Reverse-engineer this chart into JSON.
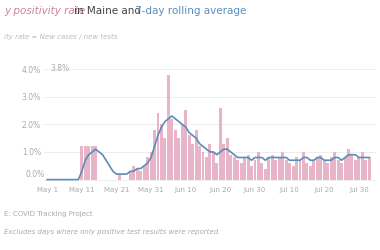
{
  "title_part1": "y positivity rate ",
  "title_part2": "in Maine and ",
  "title_part3": "7-day rolling average",
  "subtitle": "ity rate = New cases / new tests",
  "bar_color": "#e8b4c8",
  "line_color": "#5b8db8",
  "title_color1": "#c8849c",
  "title_color2": "#444444",
  "title_color3": "#5b8db8",
  "bg_color": "#ffffff",
  "axis_label_color": "#aaaaaa",
  "grid_color": "#e8e8e8",
  "source_text": "E: COVID Tracking Project",
  "footnote_text": "Excludes days where only positive test results were reported.",
  "ytick_labels": [
    " .0%",
    " .0%",
    " .0%",
    " .0%",
    " .0%"
  ],
  "ytick_values": [
    0.0,
    1.0,
    2.0,
    3.0,
    4.0
  ],
  "ymax": 4.1,
  "ymin": -0.15,
  "x_tick_labels": [
    "May 1",
    "May 11",
    "May 21",
    "May 31",
    "Jun 10",
    "Jun 20",
    "Jun 30",
    "Jul 10",
    "Jul 20",
    "Jul 30"
  ],
  "x_tick_positions": [
    0,
    10,
    20,
    30,
    40,
    50,
    60,
    70,
    80,
    90
  ],
  "daily_positivity": [
    0.0,
    0.0,
    0.0,
    0.0,
    0.0,
    0.0,
    0.0,
    0.0,
    0.0,
    0.0,
    1.2,
    1.2,
    1.2,
    1.2,
    1.2,
    0.0,
    0.0,
    0.0,
    0.0,
    0.0,
    0.0,
    0.2,
    0.0,
    0.0,
    0.3,
    0.5,
    0.4,
    0.3,
    0.5,
    0.8,
    1.0,
    1.8,
    2.4,
    2.0,
    1.5,
    3.8,
    2.2,
    1.8,
    1.5,
    2.0,
    2.5,
    1.6,
    1.3,
    1.8,
    1.2,
    1.0,
    0.8,
    1.3,
    1.0,
    0.6,
    2.6,
    1.3,
    1.5,
    0.9,
    0.8,
    0.7,
    0.6,
    0.8,
    0.9,
    0.5,
    0.7,
    1.0,
    0.6,
    0.4,
    0.8,
    0.9,
    0.7,
    0.8,
    1.0,
    0.7,
    0.6,
    0.5,
    0.8,
    0.7,
    1.0,
    0.6,
    0.5,
    0.7,
    0.8,
    0.9,
    0.7,
    0.6,
    0.8,
    1.0,
    0.7,
    0.6,
    0.8,
    1.1,
    0.9,
    0.7,
    0.8,
    1.0,
    0.7,
    0.8
  ],
  "rolling_avg": [
    0.0,
    0.0,
    0.0,
    0.0,
    0.0,
    0.0,
    0.0,
    0.0,
    0.0,
    0.0,
    0.3,
    0.7,
    0.9,
    1.0,
    1.1,
    1.0,
    0.9,
    0.7,
    0.5,
    0.3,
    0.2,
    0.2,
    0.2,
    0.2,
    0.3,
    0.3,
    0.4,
    0.4,
    0.5,
    0.6,
    0.8,
    1.2,
    1.6,
    1.9,
    2.1,
    2.2,
    2.3,
    2.2,
    2.1,
    2.0,
    1.9,
    1.7,
    1.6,
    1.5,
    1.3,
    1.2,
    1.1,
    1.0,
    1.0,
    0.9,
    1.0,
    1.1,
    1.1,
    1.0,
    0.9,
    0.8,
    0.8,
    0.8,
    0.8,
    0.7,
    0.8,
    0.8,
    0.8,
    0.7,
    0.8,
    0.8,
    0.8,
    0.8,
    0.8,
    0.8,
    0.7,
    0.7,
    0.7,
    0.7,
    0.8,
    0.8,
    0.7,
    0.7,
    0.8,
    0.8,
    0.7,
    0.7,
    0.7,
    0.8,
    0.8,
    0.7,
    0.8,
    0.9,
    0.9,
    0.9,
    0.8,
    0.8,
    0.8,
    0.8
  ]
}
